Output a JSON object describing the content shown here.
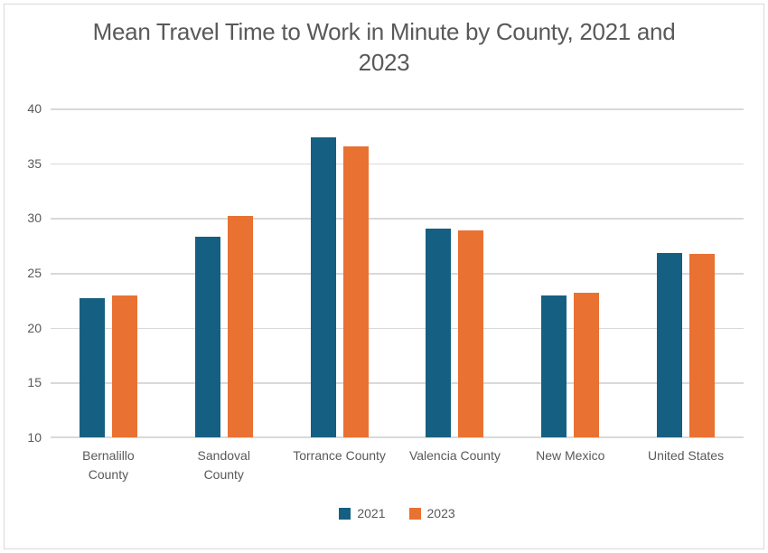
{
  "title_lines": [
    "Mean Travel Time to Work in Minute by County, 2021 and",
    "2023"
  ],
  "chart_data": {
    "type": "bar",
    "title": "Mean Travel Time to Work in Minute by County, 2021 and 2023",
    "categories": [
      "Bernalillo County",
      "Sandoval County",
      "Torrance County",
      "Valencia County",
      "New Mexico",
      "United States"
    ],
    "category_label_lines": [
      [
        "Bernalillo",
        "County"
      ],
      [
        "Sandoval",
        "County"
      ],
      [
        "Torrance County"
      ],
      [
        "Valencia County"
      ],
      [
        "New Mexico"
      ],
      [
        "United States"
      ]
    ],
    "series": [
      {
        "name": "2021",
        "color": "#156082",
        "values": [
          22.7,
          28.3,
          37.4,
          29.0,
          22.9,
          26.8
        ]
      },
      {
        "name": "2023",
        "color": "#E97132",
        "values": [
          22.9,
          30.2,
          36.5,
          28.9,
          23.2,
          26.7
        ]
      }
    ],
    "ylim": [
      10,
      40
    ],
    "yticks": [
      40,
      35,
      30,
      25,
      20,
      15,
      10
    ],
    "grid": true,
    "legend_position": "bottom",
    "xlabel": "",
    "ylabel": ""
  },
  "colors": {
    "background": "#FFFFFF",
    "frame_border": "#D9D9D9",
    "gridline": "#D9D9D9",
    "axis_text": "#595959",
    "title_text": "#595959",
    "series_2021": "#156082",
    "series_2023": "#E97132"
  }
}
